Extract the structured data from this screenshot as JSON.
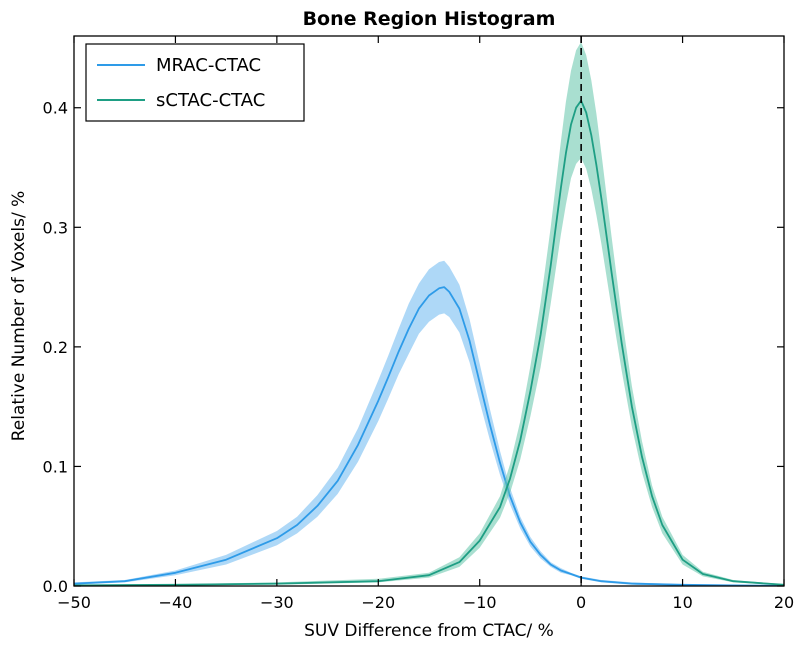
{
  "chart_data": {
    "type": "line",
    "title": "Bone Region Histogram",
    "xlabel": "SUV Difference from CTAC/ %",
    "ylabel": "Relative Number of Voxels/ %",
    "xlim": [
      -50,
      20
    ],
    "ylim": [
      0,
      0.46
    ],
    "xticks": [
      -50,
      -40,
      -30,
      -20,
      -10,
      0,
      10,
      20
    ],
    "xtick_labels": [
      "−50",
      "−40",
      "−30",
      "−20",
      "−10",
      "0",
      "10",
      "20"
    ],
    "yticks": [
      0.0,
      0.1,
      0.2,
      0.3,
      0.4
    ],
    "ytick_labels": [
      "0.0",
      "0.1",
      "0.2",
      "0.3",
      "0.4"
    ],
    "grid": false,
    "legend_position": "top-left",
    "reference_line": {
      "x": 0,
      "style": "dashed",
      "color": "#000000"
    },
    "series": [
      {
        "name": "MRAC-CTAC",
        "color": "#2E9BE8",
        "fill_color": "#6BB8F0",
        "x": [
          -50,
          -45,
          -40,
          -35,
          -30,
          -28,
          -26,
          -24,
          -22,
          -20,
          -19,
          -18,
          -17,
          -16,
          -15,
          -14,
          -13.5,
          -13,
          -12,
          -11,
          -10,
          -9,
          -8,
          -7,
          -6,
          -5,
          -4,
          -3,
          -2,
          -1,
          0,
          2,
          5,
          10,
          15,
          20
        ],
        "y": [
          0.002,
          0.004,
          0.011,
          0.022,
          0.04,
          0.051,
          0.067,
          0.088,
          0.118,
          0.155,
          0.175,
          0.196,
          0.215,
          0.232,
          0.243,
          0.249,
          0.25,
          0.246,
          0.232,
          0.205,
          0.17,
          0.135,
          0.103,
          0.075,
          0.053,
          0.037,
          0.026,
          0.018,
          0.013,
          0.01,
          0.007,
          0.004,
          0.002,
          0.001,
          0.0005,
          0.0002
        ],
        "upper": [
          0.003,
          0.005,
          0.013,
          0.026,
          0.046,
          0.058,
          0.076,
          0.099,
          0.132,
          0.172,
          0.193,
          0.215,
          0.236,
          0.253,
          0.265,
          0.271,
          0.272,
          0.267,
          0.252,
          0.223,
          0.186,
          0.148,
          0.113,
          0.082,
          0.058,
          0.041,
          0.029,
          0.02,
          0.015,
          0.011,
          0.008,
          0.005,
          0.003,
          0.0015,
          0.0008,
          0.0004
        ],
        "lower": [
          0.001,
          0.003,
          0.009,
          0.018,
          0.034,
          0.044,
          0.058,
          0.077,
          0.104,
          0.138,
          0.157,
          0.177,
          0.194,
          0.211,
          0.221,
          0.227,
          0.228,
          0.225,
          0.212,
          0.187,
          0.154,
          0.122,
          0.093,
          0.068,
          0.048,
          0.033,
          0.023,
          0.016,
          0.011,
          0.009,
          0.006,
          0.003,
          0.001,
          0.0005,
          0.0002,
          0.0001
        ]
      },
      {
        "name": "sCTAC-CTAC",
        "color": "#1E9E84",
        "fill_color": "#62C4A9",
        "x": [
          -50,
          -40,
          -30,
          -20,
          -15,
          -12,
          -10,
          -8,
          -7,
          -6,
          -5,
          -4,
          -3,
          -2,
          -1.5,
          -1,
          -0.5,
          0,
          0.5,
          1,
          1.5,
          2,
          3,
          4,
          5,
          6,
          7,
          8,
          10,
          12,
          15,
          20
        ],
        "y": [
          0.0005,
          0.001,
          0.002,
          0.004,
          0.009,
          0.02,
          0.038,
          0.066,
          0.09,
          0.122,
          0.163,
          0.21,
          0.268,
          0.333,
          0.362,
          0.386,
          0.4,
          0.406,
          0.396,
          0.377,
          0.352,
          0.324,
          0.262,
          0.203,
          0.15,
          0.108,
          0.075,
          0.051,
          0.022,
          0.01,
          0.004,
          0.001
        ],
        "upper": [
          0.001,
          0.0015,
          0.003,
          0.006,
          0.011,
          0.024,
          0.044,
          0.075,
          0.102,
          0.138,
          0.184,
          0.237,
          0.3,
          0.372,
          0.405,
          0.431,
          0.448,
          0.455,
          0.444,
          0.423,
          0.395,
          0.362,
          0.292,
          0.226,
          0.167,
          0.121,
          0.084,
          0.058,
          0.026,
          0.012,
          0.005,
          0.0015
        ],
        "lower": [
          0.0002,
          0.0005,
          0.001,
          0.003,
          0.007,
          0.016,
          0.032,
          0.057,
          0.078,
          0.106,
          0.142,
          0.183,
          0.236,
          0.294,
          0.319,
          0.341,
          0.353,
          0.358,
          0.349,
          0.332,
          0.31,
          0.286,
          0.232,
          0.18,
          0.133,
          0.095,
          0.066,
          0.044,
          0.018,
          0.008,
          0.003,
          0.0005
        ]
      }
    ]
  }
}
